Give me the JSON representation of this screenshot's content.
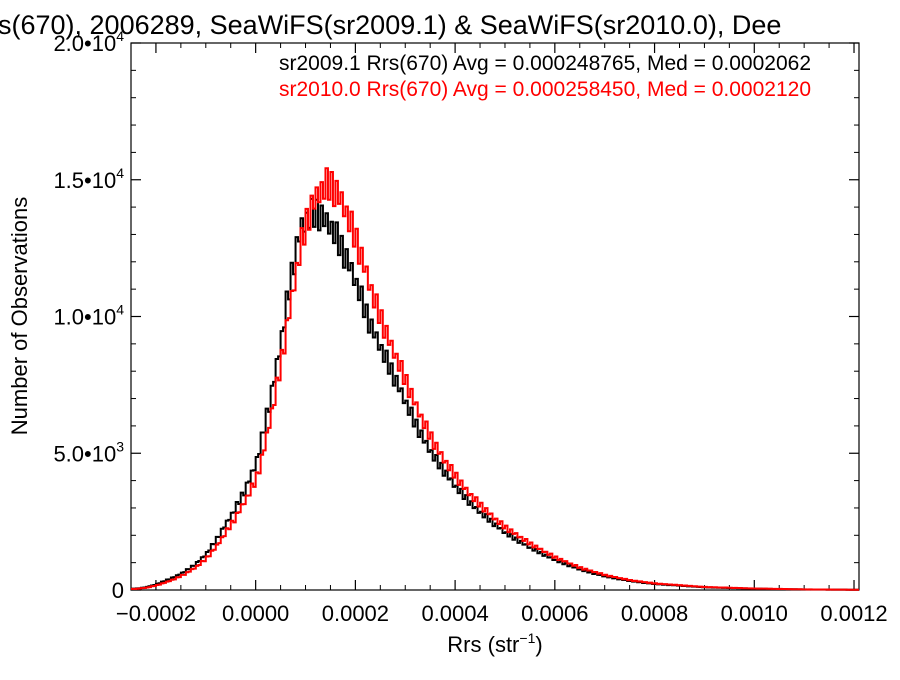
{
  "chart_data": {
    "type": "histogram",
    "title": "s(670), 2006289, SeaWiFS(sr2009.1) & SeaWiFS(sr2010.0), Dee",
    "xlabel": "Rrs (str",
    "xlabel_sup": "−1",
    "xlabel_close": ")",
    "ylabel": "Number of Observations",
    "xlim": [
      -0.00025,
      0.00121
    ],
    "ylim": [
      0,
      20000
    ],
    "x_ticks": [
      {
        "value": -0.0002,
        "label": "−0.0002"
      },
      {
        "value": 0.0,
        "label": "0.0000"
      },
      {
        "value": 0.0002,
        "label": "0.0002"
      },
      {
        "value": 0.0004,
        "label": "0.0004"
      },
      {
        "value": 0.0006,
        "label": "0.0006"
      },
      {
        "value": 0.0008,
        "label": "0.0008"
      },
      {
        "value": 0.001,
        "label": "0.0010"
      },
      {
        "value": 0.0012,
        "label": "0.0012"
      }
    ],
    "y_ticks": [
      {
        "value": 0,
        "mantissa": "0",
        "exponent": ""
      },
      {
        "value": 5000,
        "mantissa": "5.0•10",
        "exponent": "3"
      },
      {
        "value": 10000,
        "mantissa": "1.0•10",
        "exponent": "4"
      },
      {
        "value": 15000,
        "mantissa": "1.5•10",
        "exponent": "4"
      },
      {
        "value": 20000,
        "mantissa": "2.0•10",
        "exponent": "4"
      }
    ],
    "grid": false,
    "annotations": [
      {
        "text": "sr2009.1 Rrs(670) Avg = 0.000248765, Med = 0.0002062",
        "color": "#000000"
      },
      {
        "text": "sr2010.0 Rrs(670) Avg = 0.000258450, Med = 0.0002120",
        "color": "#ff0000"
      }
    ],
    "series": [
      {
        "color": "#000000",
        "x": [
          -0.00024,
          -0.00022,
          -0.0002,
          -0.00018,
          -0.00016,
          -0.00014,
          -0.00012,
          -0.0001,
          -8e-05,
          -6e-05,
          -4e-05,
          -2e-05,
          0,
          1e-05,
          2e-05,
          3e-05,
          4e-05,
          5e-05,
          6e-05,
          7e-05,
          8e-05,
          9e-05,
          0.0001,
          0.00011,
          0.00012,
          0.00013,
          0.00014,
          0.00015,
          0.00016,
          0.00017,
          0.00018,
          0.00019,
          0.0002,
          0.00021,
          0.00022,
          0.00023,
          0.00024,
          0.00025,
          0.00026,
          0.00027,
          0.00028,
          0.0003,
          0.00032,
          0.00034,
          0.00036,
          0.00038,
          0.0004,
          0.00042,
          0.00044,
          0.00046,
          0.00048,
          0.0005,
          0.00055,
          0.0006,
          0.00065,
          0.0007,
          0.00075,
          0.0008,
          0.0009,
          0.001,
          0.0011,
          0.0012
        ],
        "values": [
          50,
          100,
          200,
          350,
          500,
          700,
          950,
          1300,
          1800,
          2400,
          3000,
          3700,
          4600,
          5300,
          6200,
          7000,
          8000,
          9000,
          10200,
          11300,
          12300,
          13200,
          13500,
          13700,
          13800,
          13700,
          13500,
          13300,
          13000,
          12600,
          12200,
          11800,
          11300,
          10800,
          10200,
          9700,
          9300,
          8900,
          8500,
          8100,
          7700,
          6900,
          6100,
          5400,
          4800,
          4300,
          3800,
          3400,
          3000,
          2700,
          2400,
          2100,
          1550,
          1100,
          750,
          500,
          330,
          220,
          100,
          50,
          20,
          10
        ]
      },
      {
        "color": "#ff0000",
        "x": [
          -0.00024,
          -0.00022,
          -0.0002,
          -0.00018,
          -0.00016,
          -0.00014,
          -0.00012,
          -0.0001,
          -8e-05,
          -6e-05,
          -4e-05,
          -2e-05,
          0,
          1e-05,
          2e-05,
          3e-05,
          4e-05,
          5e-05,
          6e-05,
          7e-05,
          8e-05,
          9e-05,
          0.0001,
          0.00011,
          0.00012,
          0.00013,
          0.00014,
          0.00015,
          0.00016,
          0.00017,
          0.00018,
          0.00019,
          0.0002,
          0.00021,
          0.00022,
          0.00023,
          0.00024,
          0.00025,
          0.00026,
          0.00027,
          0.00028,
          0.0003,
          0.00032,
          0.00034,
          0.00036,
          0.00038,
          0.0004,
          0.00042,
          0.00044,
          0.00046,
          0.00048,
          0.0005,
          0.00055,
          0.0006,
          0.00065,
          0.0007,
          0.00075,
          0.0008,
          0.0009,
          0.001,
          0.0011,
          0.0012
        ],
        "values": [
          40,
          80,
          160,
          280,
          420,
          600,
          830,
          1130,
          1550,
          2100,
          2650,
          3300,
          4000,
          4600,
          5400,
          6300,
          7200,
          8200,
          9300,
          10400,
          11500,
          12500,
          13300,
          13900,
          14300,
          14600,
          14800,
          14800,
          14600,
          14300,
          13900,
          13400,
          12900,
          12300,
          11700,
          11100,
          10500,
          10000,
          9500,
          9000,
          8600,
          7700,
          6800,
          6000,
          5300,
          4700,
          4200,
          3700,
          3300,
          2950,
          2600,
          2300,
          1700,
          1200,
          820,
          550,
          360,
          240,
          110,
          55,
          22,
          10
        ]
      }
    ]
  }
}
